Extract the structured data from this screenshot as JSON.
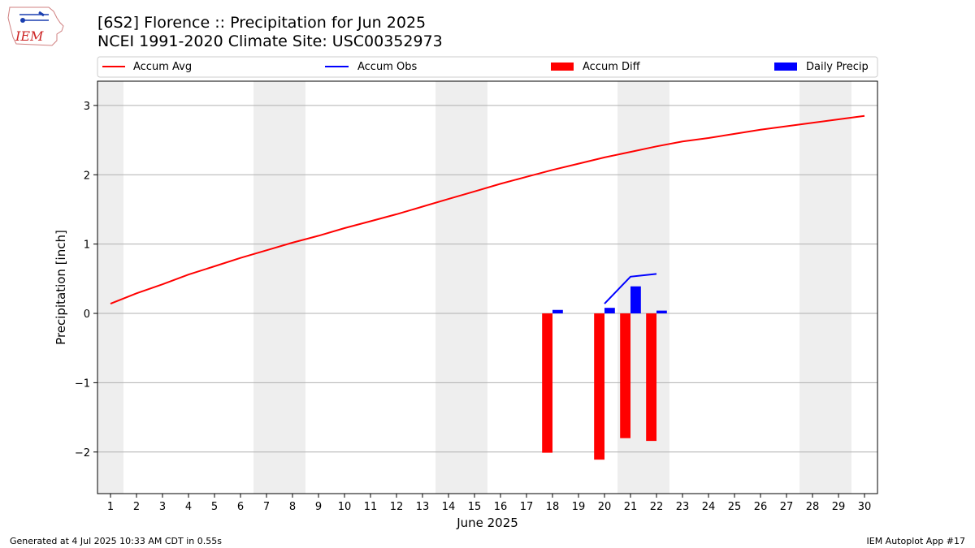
{
  "title_line1": "[6S2] Florence :: Precipitation for Jun 2025",
  "title_line2": "NCEI 1991-2020 Climate Site: USC00352973",
  "footer_left": "Generated at 4 Jul 2025 10:33 AM CDT in 0.55s",
  "footer_right": "IEM Autoplot App #17",
  "logo_text": "IEM",
  "colors": {
    "avg": "#ff0000",
    "obs": "#0000ff",
    "diff": "#ff0000",
    "daily": "#0000ff",
    "weekend": "#eeeeee",
    "grid": "#b0b0b0"
  },
  "chart_data": {
    "type": "bar",
    "xlabel": "June 2025",
    "ylabel": "Precipitation [inch]",
    "xlim": [
      0.5,
      30.5
    ],
    "ylim": [
      -2.6,
      3.35
    ],
    "x_ticks": [
      1,
      2,
      3,
      4,
      5,
      6,
      7,
      8,
      9,
      10,
      11,
      12,
      13,
      14,
      15,
      16,
      17,
      18,
      19,
      20,
      21,
      22,
      23,
      24,
      25,
      26,
      27,
      28,
      29,
      30
    ],
    "y_ticks": [
      -2,
      -1,
      0,
      1,
      2,
      3
    ],
    "y_tick_labels": [
      "−2",
      "−1",
      "0",
      "1",
      "2",
      "3"
    ],
    "grid": true,
    "weekend_spans": [
      [
        0.5,
        1.5
      ],
      [
        6.5,
        8.5
      ],
      [
        13.5,
        15.5
      ],
      [
        20.5,
        22.5
      ],
      [
        27.5,
        29.5
      ]
    ],
    "legend": [
      "Accum Avg",
      "Accum Obs",
      "Accum Diff",
      "Daily Precip"
    ],
    "accum_avg": {
      "x": [
        1,
        2,
        3,
        4,
        5,
        6,
        7,
        8,
        9,
        10,
        11,
        12,
        13,
        14,
        15,
        16,
        17,
        18,
        19,
        20,
        21,
        22,
        23,
        24,
        25,
        26,
        27,
        28,
        29,
        30
      ],
      "y": [
        0.14,
        0.29,
        0.42,
        0.56,
        0.68,
        0.8,
        0.91,
        1.02,
        1.12,
        1.23,
        1.33,
        1.43,
        1.54,
        1.65,
        1.76,
        1.87,
        1.97,
        2.07,
        2.16,
        2.25,
        2.33,
        2.41,
        2.48,
        2.53,
        2.59,
        2.65,
        2.7,
        2.75,
        2.8,
        2.85
      ]
    },
    "accum_obs": {
      "x": [
        20,
        21,
        22
      ],
      "y": [
        0.14,
        0.53,
        0.57
      ]
    },
    "accum_diff": {
      "x": [
        18,
        20,
        21,
        22
      ],
      "y": [
        -2.01,
        -2.11,
        -1.8,
        -1.84
      ]
    },
    "daily_precip": {
      "x": [
        18,
        20,
        21,
        22
      ],
      "y": [
        0.05,
        0.08,
        0.39,
        0.04
      ]
    }
  }
}
